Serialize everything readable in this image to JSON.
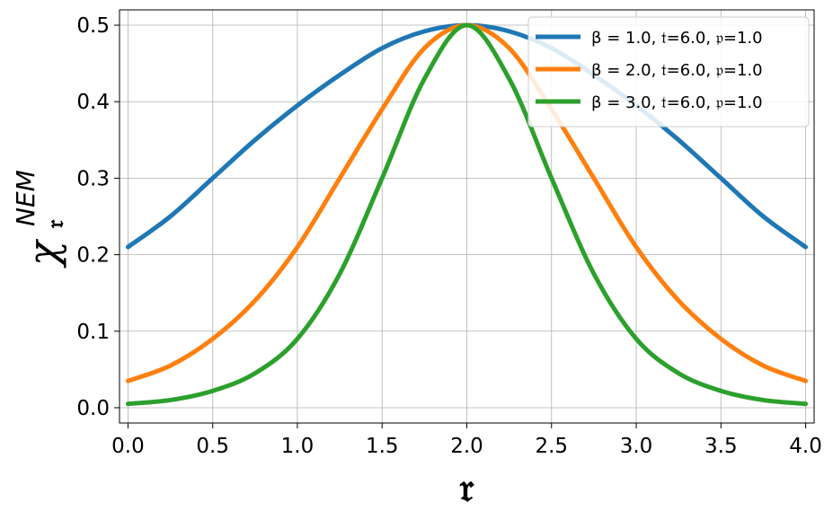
{
  "chart_data": {
    "type": "line",
    "title": "",
    "xlabel": "𝔯",
    "ylabel": {
      "main": "χ",
      "superscript": "NEM",
      "subscript": "𝔯"
    },
    "xlim": [
      -0.05,
      4.05
    ],
    "ylim": [
      -0.02,
      0.52
    ],
    "xticks": [
      "0.0",
      "0.5",
      "1.0",
      "1.5",
      "2.0",
      "2.5",
      "3.0",
      "3.5",
      "4.0"
    ],
    "yticks": [
      "0.0",
      "0.1",
      "0.2",
      "0.3",
      "0.4",
      "0.5"
    ],
    "grid": true,
    "legend_position": "top-right",
    "x": [
      0.0,
      0.25,
      0.5,
      0.75,
      1.0,
      1.25,
      1.5,
      1.75,
      2.0,
      2.25,
      2.5,
      2.75,
      3.0,
      3.25,
      3.5,
      3.75,
      4.0
    ],
    "series": [
      {
        "name": "β = 1.0, 𝔱=6.0, 𝔭=1.0",
        "color": "#1f77b4",
        "values": [
          0.21,
          0.25,
          0.3,
          0.35,
          0.395,
          0.435,
          0.47,
          0.492,
          0.5,
          0.492,
          0.47,
          0.435,
          0.395,
          0.35,
          0.3,
          0.25,
          0.21
        ]
      },
      {
        "name": "β = 2.0, 𝔱=6.0, 𝔭=1.0",
        "color": "#ff7f0e",
        "values": [
          0.035,
          0.055,
          0.09,
          0.14,
          0.21,
          0.3,
          0.39,
          0.47,
          0.5,
          0.47,
          0.39,
          0.3,
          0.21,
          0.14,
          0.09,
          0.055,
          0.035
        ]
      },
      {
        "name": "β = 3.0, 𝔱=6.0, 𝔭=1.0",
        "color": "#2ca02c",
        "values": [
          0.005,
          0.01,
          0.022,
          0.045,
          0.09,
          0.175,
          0.3,
          0.43,
          0.5,
          0.43,
          0.3,
          0.175,
          0.09,
          0.045,
          0.022,
          0.01,
          0.005
        ]
      }
    ]
  }
}
